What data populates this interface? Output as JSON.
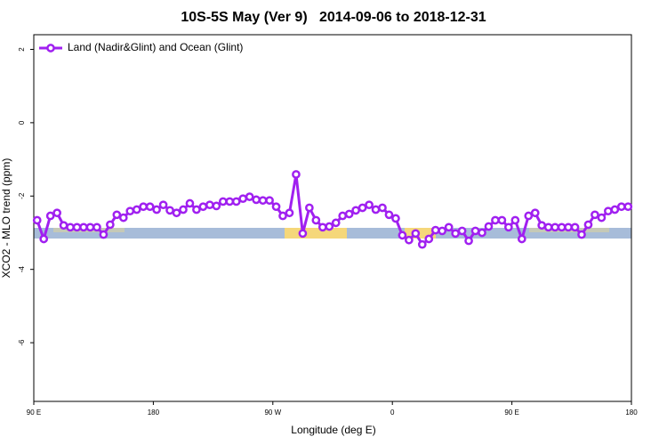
{
  "chart_data": {
    "type": "line",
    "title": "10S-5S May (Ver 9)   2014-09-06 to 2018-12-31",
    "xlabel": "Longitude (deg E)",
    "ylabel": "XCO2 - MLO trend (ppm)",
    "xlim": [
      90,
      540
    ],
    "xticks": [
      {
        "value": 90,
        "label": "90 E"
      },
      180,
      {
        "value": 270,
        "label": "90 W"
      },
      {
        "value": 360,
        "label": "0"
      },
      {
        "value": 450,
        "label": "90 E"
      },
      {
        "value": 540,
        "label": "180"
      }
    ],
    "ylim": [
      -7.6,
      2.4
    ],
    "yticks": [
      2,
      0,
      -2,
      -4,
      -6
    ],
    "legend": "top-left",
    "x": [
      92.5,
      97.5,
      102.5,
      107.5,
      112.5,
      117.5,
      122.5,
      127.5,
      132.5,
      137.5,
      142.5,
      147.5,
      152.5,
      157.5,
      162.5,
      167.5,
      172.5,
      177.5,
      182.5,
      187.5,
      192.5,
      197.5,
      202.5,
      207.5,
      212.5,
      217.5,
      222.5,
      227.5,
      232.5,
      237.5,
      242.5,
      247.5,
      252.5,
      257.5,
      262.5,
      267.5,
      272.5,
      277.5,
      282.5,
      287.5,
      292.5,
      297.5,
      302.5,
      307.5,
      312.5,
      317.5,
      322.5,
      327.5,
      332.5,
      337.5,
      342.5,
      347.5,
      352.5,
      357.5,
      362.5,
      367.5,
      372.5,
      377.5,
      382.5,
      387.5,
      392.5,
      397.5,
      402.5,
      407.5,
      412.5,
      417.5,
      422.5,
      427.5,
      432.5,
      437.5,
      442.5,
      447.5,
      452.5,
      457.5,
      462.5,
      467.5,
      472.5,
      477.5,
      482.5,
      487.5,
      492.5,
      497.5,
      502.5,
      507.5,
      512.5,
      517.5,
      522.5,
      527.5,
      532.5,
      537.5
    ],
    "series": [
      {
        "name": "Land (Nadir&Glint) and Ocean (Glint)",
        "color": "#a020f0",
        "values": [
          -2.66,
          -3.17,
          -2.54,
          -2.46,
          -2.8,
          -2.85,
          -2.85,
          -2.85,
          -2.85,
          -2.85,
          -3.05,
          -2.78,
          -2.51,
          -2.59,
          -2.41,
          -2.37,
          -2.29,
          -2.29,
          -2.37,
          -2.24,
          -2.39,
          -2.46,
          -2.37,
          -2.2,
          -2.37,
          -2.29,
          -2.24,
          -2.27,
          -2.15,
          -2.15,
          -2.15,
          -2.07,
          -2.02,
          -2.1,
          -2.12,
          -2.12,
          -2.29,
          -2.54,
          -2.46,
          -1.41,
          -3.02,
          -2.32,
          -2.66,
          -2.85,
          -2.83,
          -2.73,
          -2.54,
          -2.49,
          -2.39,
          -2.32,
          -2.24,
          -2.37,
          -2.32,
          -2.51,
          -2.61,
          -3.07,
          -3.2,
          -3.02,
          -3.32,
          -3.17,
          -2.93,
          -2.95,
          -2.85,
          -3.02,
          -2.95,
          -3.22,
          -2.95,
          -3.0,
          -2.83,
          -2.66,
          -2.66,
          -2.85,
          -2.66,
          -3.17,
          -2.54,
          -2.46,
          -2.8,
          -2.85,
          -2.85,
          -2.85,
          -2.85,
          -2.85,
          -3.05,
          -2.78,
          -2.51,
          -2.59,
          -2.41,
          -2.37,
          -2.29,
          -2.29
        ]
      }
    ]
  }
}
